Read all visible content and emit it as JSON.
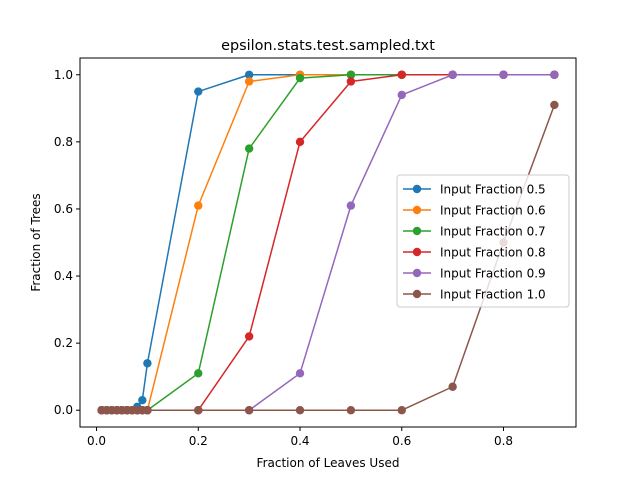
{
  "chart_data": {
    "type": "line",
    "title": "epsilon.stats.test.sampled.txt",
    "xlabel": "Fraction of Leaves Used",
    "ylabel": "Fraction of Trees",
    "xlim": [
      -0.0325,
      0.9425
    ],
    "ylim": [
      -0.05,
      1.05
    ],
    "xticks": [
      0.0,
      0.2,
      0.4,
      0.6,
      0.8
    ],
    "xtick_labels": [
      "0.0",
      "0.2",
      "0.4",
      "0.6",
      "0.8"
    ],
    "yticks": [
      0.0,
      0.2,
      0.4,
      0.6,
      0.8,
      1.0
    ],
    "ytick_labels": [
      "0.0",
      "0.2",
      "0.4",
      "0.6",
      "0.8",
      "1.0"
    ],
    "grid": false,
    "legend_position": "center-right",
    "x": [
      0.01,
      0.02,
      0.03,
      0.04,
      0.05,
      0.06,
      0.07,
      0.08,
      0.09,
      0.1,
      0.2,
      0.3,
      0.4,
      0.5,
      0.6,
      0.7,
      0.8,
      0.9
    ],
    "series": [
      {
        "name": "Input Fraction 0.5",
        "color": "#1f77b4",
        "values": [
          0,
          0,
          0,
          0,
          0,
          0,
          0,
          0.01,
          0.03,
          0.14,
          0.95,
          1.0,
          1.0,
          1.0,
          1.0,
          1.0,
          1.0,
          1.0
        ]
      },
      {
        "name": "Input Fraction 0.6",
        "color": "#ff7f0e",
        "values": [
          0,
          0,
          0,
          0,
          0,
          0,
          0,
          0,
          0,
          0,
          0.61,
          0.98,
          1.0,
          1.0,
          1.0,
          1.0,
          1.0,
          1.0
        ]
      },
      {
        "name": "Input Fraction 0.7",
        "color": "#2ca02c",
        "values": [
          0,
          0,
          0,
          0,
          0,
          0,
          0,
          0,
          0,
          0,
          0.11,
          0.78,
          0.99,
          1.0,
          1.0,
          1.0,
          1.0,
          1.0
        ]
      },
      {
        "name": "Input Fraction 0.8",
        "color": "#d62728",
        "values": [
          0,
          0,
          0,
          0,
          0,
          0,
          0,
          0,
          0,
          0,
          0,
          0.22,
          0.8,
          0.98,
          1.0,
          1.0,
          1.0,
          1.0
        ]
      },
      {
        "name": "Input Fraction 0.9",
        "color": "#9467bd",
        "values": [
          0,
          0,
          0,
          0,
          0,
          0,
          0,
          0,
          0,
          0,
          0,
          0,
          0.11,
          0.61,
          0.94,
          1.0,
          1.0,
          1.0
        ]
      },
      {
        "name": "Input Fraction 1.0",
        "color": "#8c564b",
        "values": [
          0,
          0,
          0,
          0,
          0,
          0,
          0,
          0,
          0,
          0,
          0,
          0,
          0,
          0,
          0,
          0.07,
          0.5,
          0.91
        ]
      }
    ]
  }
}
